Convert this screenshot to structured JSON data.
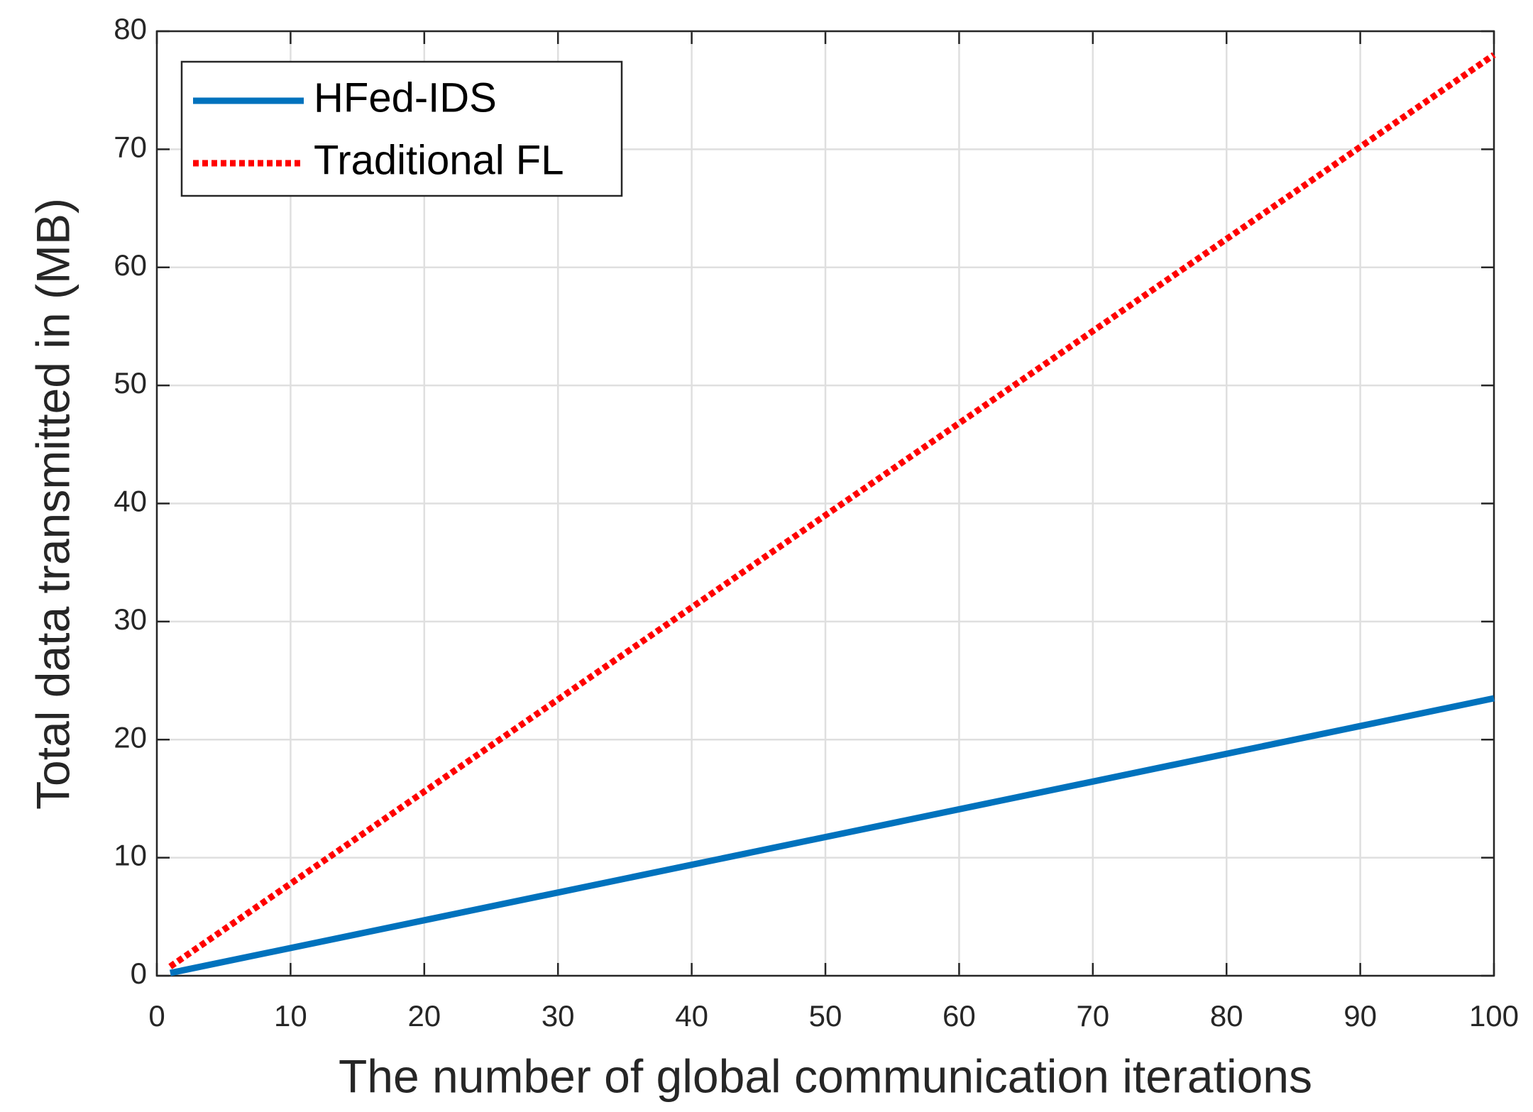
{
  "chart_data": {
    "type": "line",
    "xlabel": "The number of global communication iterations",
    "ylabel": "Total data transmitted in (MB)",
    "x": [
      1,
      100
    ],
    "series": [
      {
        "name": "HFed-IDS",
        "color": "#0072bd",
        "style": "solid",
        "values": [
          0.235,
          23.5
        ]
      },
      {
        "name": "Traditional FL",
        "color": "#ff0000",
        "style": "dotted",
        "values": [
          0.78,
          78
        ]
      }
    ],
    "xlim": [
      0,
      100
    ],
    "xticks": [
      0,
      10,
      20,
      30,
      40,
      50,
      60,
      70,
      80,
      90,
      100
    ],
    "ylim": [
      0,
      80
    ],
    "yticks": [
      0,
      10,
      20,
      30,
      40,
      50,
      60,
      70,
      80
    ],
    "grid": true,
    "legend": "upper-left"
  }
}
